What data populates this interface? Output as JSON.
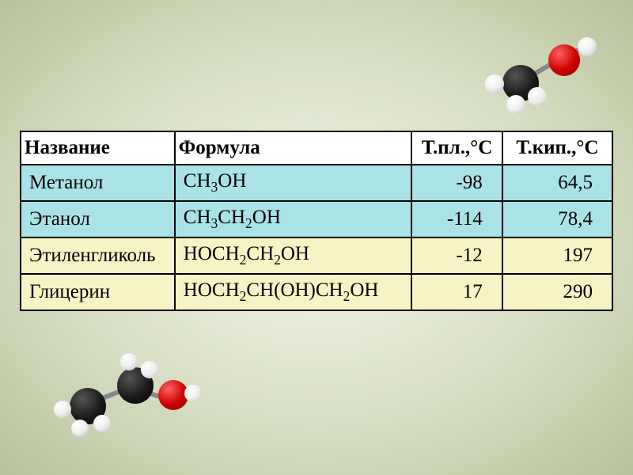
{
  "table": {
    "headers": {
      "name": "Название",
      "formula": "Формула",
      "tpl": "Т.пл.,°С",
      "tkip": "Т.кип.,°С"
    },
    "rows": [
      {
        "row_bg": "#a9e3e8",
        "name": "Метанол",
        "formula": "CH<sub>3</sub>OH",
        "tpl": "-98",
        "tkip": "64,5"
      },
      {
        "row_bg": "#a9e3e8",
        "name": "Этанол",
        "formula": "CH<sub>3</sub>CH<sub>2</sub>OH",
        "tpl": "-114",
        "tkip": "78,4"
      },
      {
        "row_bg": "#f7f3c5",
        "name": "Этиленгликоль",
        "formula": "HOCH<sub>2</sub>CH<sub>2</sub>OH",
        "tpl": "-12",
        "tkip": "197"
      },
      {
        "row_bg": "#f7f3c5",
        "name": "Глицерин",
        "formula": "HOCH<sub>2</sub>CH(OH)CH<sub>2</sub>OH",
        "tpl": "17",
        "tkip": "290"
      }
    ],
    "header_bg": "#ffffff",
    "border_color": "#000000",
    "font_family": "Times New Roman",
    "font_size_pt": 18
  },
  "colors": {
    "carbon": "#1a1a1a",
    "oxygen": "#c00000",
    "hydrogen": "#eeeeee",
    "bond": "#888888",
    "bg_center": "#f5f8e8",
    "bg_edge": "#b8c29a"
  },
  "molecules": {
    "top_right": "methanol-3d",
    "bottom_left": "ethanol-3d"
  }
}
